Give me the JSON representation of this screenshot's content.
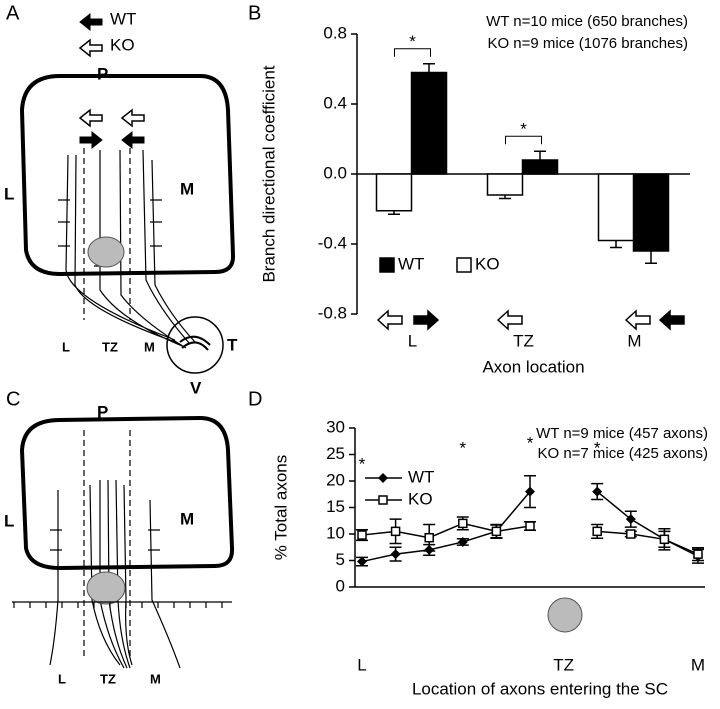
{
  "panels": [
    "A",
    "B",
    "C",
    "D"
  ],
  "diagram_a": {
    "legend": [
      "WT",
      "KO"
    ],
    "labels": [
      "P",
      "L",
      "M",
      "L",
      "TZ",
      "M",
      "T",
      "V"
    ]
  },
  "diagram_c": {
    "labels": [
      "P",
      "L",
      "M",
      "L",
      "TZ",
      "M"
    ]
  },
  "chart_data": [
    {
      "type": "bar",
      "y_label": "Branch directional coefficient",
      "x_label": "Axon location",
      "notes": [
        "WT n=10 mice (650 branches)",
        "KO n=9 mice (1076 branches)"
      ],
      "categories": [
        "L",
        "TZ",
        "M"
      ],
      "series": [
        {
          "name": "WT",
          "color": "#000000",
          "values": [
            0.58,
            0.08,
            -0.44
          ],
          "errors": [
            0.05,
            0.05,
            0.07
          ]
        },
        {
          "name": "KO",
          "color": "#ffffff",
          "values": [
            -0.21,
            -0.12,
            -0.38
          ],
          "errors": [
            0.02,
            0.02,
            0.04
          ]
        }
      ],
      "ylim": [
        -0.8,
        0.8
      ],
      "yticks": [
        0.8,
        0.4,
        {
          "value": 0,
          "label": "0.0"
        },
        -0.4,
        -0.8
      ],
      "annotations": [
        "*",
        "*"
      ]
    },
    {
      "type": "line",
      "y_label": "% Total axons",
      "x_label": "Location of axons entering the SC",
      "notes": [
        "WT n=9 mice (457 axons)",
        "KO n=7 mice (425 axons)"
      ],
      "categories": [
        "L",
        null,
        null,
        null,
        null,
        null,
        "TZ",
        null,
        null,
        null,
        "M"
      ],
      "series": [
        {
          "name": "WT",
          "color": "#000000",
          "marker": "diamond",
          "values": [
            4.8,
            6.2,
            7.0,
            8.5,
            10.5,
            18.0,
            null,
            18.0,
            12.8,
            9.0,
            5.8
          ],
          "errors": [
            0.8,
            1.3,
            1.0,
            0.6,
            1.2,
            3.0,
            null,
            1.5,
            1.5,
            1.5,
            1.3
          ]
        },
        {
          "name": "KO",
          "color": "#000000",
          "marker": "square",
          "values": [
            9.8,
            10.5,
            9.3,
            12.0,
            10.5,
            11.5,
            null,
            10.5,
            10.0,
            9.0,
            6.2
          ],
          "errors": [
            1.0,
            2.3,
            2.5,
            1.2,
            1.3,
            0.8,
            null,
            1.3,
            0.5,
            2.0,
            1.2
          ]
        }
      ],
      "ylim": [
        0,
        30
      ],
      "yticks": [
        0,
        5,
        10,
        15,
        20,
        25,
        30
      ],
      "annotations": [
        "*",
        "*",
        "*",
        "*"
      ]
    }
  ]
}
